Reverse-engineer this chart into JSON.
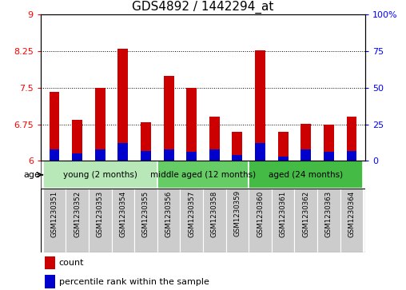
{
  "title": "GDS4892 / 1442294_at",
  "samples": [
    "GSM1230351",
    "GSM1230352",
    "GSM1230353",
    "GSM1230354",
    "GSM1230355",
    "GSM1230356",
    "GSM1230357",
    "GSM1230358",
    "GSM1230359",
    "GSM1230360",
    "GSM1230361",
    "GSM1230362",
    "GSM1230363",
    "GSM1230364"
  ],
  "count_values": [
    7.42,
    6.85,
    7.5,
    8.3,
    6.8,
    7.75,
    7.5,
    6.9,
    6.6,
    8.26,
    6.6,
    6.76,
    6.75,
    6.9
  ],
  "percentile_values": [
    8,
    5,
    8,
    12,
    7,
    8,
    6,
    8,
    4,
    12,
    3,
    8,
    6,
    7
  ],
  "ymin": 6,
  "ymax": 9,
  "yticks": [
    6,
    6.75,
    7.5,
    8.25,
    9
  ],
  "ytick_labels": [
    "6",
    "6.75",
    "7.5",
    "8.25",
    "9"
  ],
  "right_yticks": [
    0,
    25,
    50,
    75,
    100
  ],
  "right_ytick_labels": [
    "0",
    "25",
    "50",
    "75",
    "100%"
  ],
  "groups": [
    {
      "label": "young (2 months)",
      "start": 0,
      "end": 5
    },
    {
      "label": "middle aged (12 months)",
      "start": 5,
      "end": 9
    },
    {
      "label": "aged (24 months)",
      "start": 9,
      "end": 14
    }
  ],
  "group_colors": [
    "#b8e8b8",
    "#66cc66",
    "#44bb44"
  ],
  "bar_width": 0.45,
  "red_color": "#cc0000",
  "blue_color": "#0000cc",
  "gray_box_color": "#cccccc",
  "title_fontsize": 11,
  "tick_fontsize": 8,
  "sample_fontsize": 6.2,
  "group_fontsize": 7.5,
  "legend_fontsize": 8,
  "age_label": "age",
  "legend_count": "count",
  "legend_percentile": "percentile rank within the sample"
}
